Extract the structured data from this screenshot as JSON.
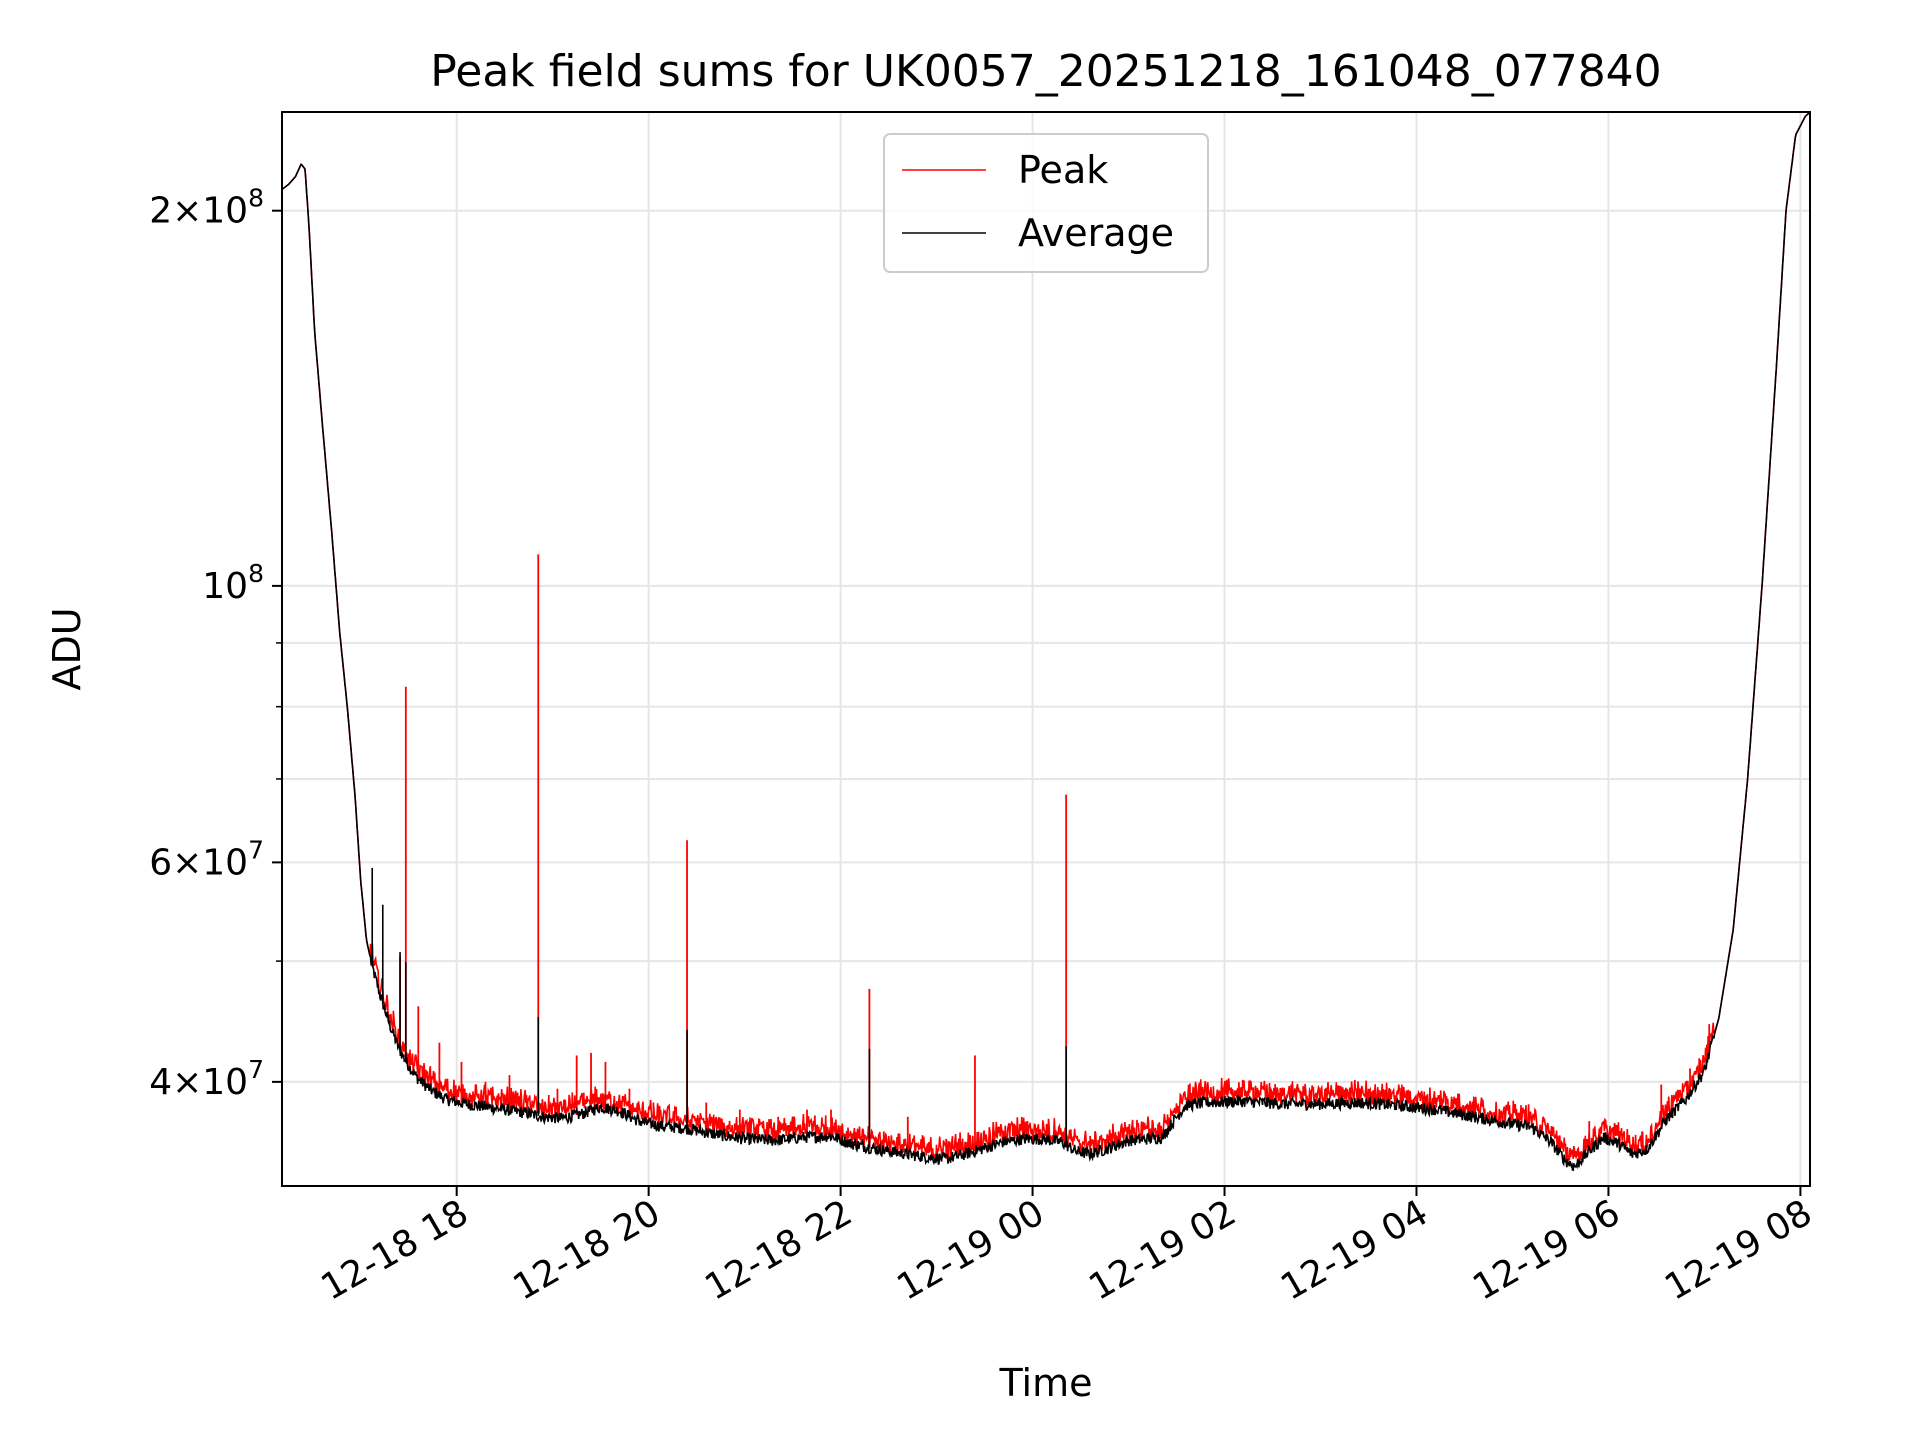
{
  "chart_data": {
    "type": "line",
    "title": "Peak field sums for UK0057_20251218_161048_077840",
    "xlabel": "Time",
    "ylabel": "ADU",
    "yscale": "log",
    "ylim": [
      33000000,
      240000000
    ],
    "xlim_hours": [
      16.18,
      32.1
    ],
    "grid": true,
    "legend_position": "upper center",
    "x_ticks": [
      {
        "hour": 18,
        "label": "12-18 18"
      },
      {
        "hour": 20,
        "label": "12-18 20"
      },
      {
        "hour": 22,
        "label": "12-18 22"
      },
      {
        "hour": 24,
        "label": "12-19 00"
      },
      {
        "hour": 26,
        "label": "12-19 02"
      },
      {
        "hour": 28,
        "label": "12-19 04"
      },
      {
        "hour": 30,
        "label": "12-19 06"
      },
      {
        "hour": 32,
        "label": "12-19 08"
      }
    ],
    "y_ticks_major": [
      {
        "value": 40000000,
        "base": "4",
        "exp": "7"
      },
      {
        "value": 60000000,
        "base": "6",
        "exp": "7"
      },
      {
        "value": 100000000,
        "base": "10",
        "exp": "8"
      },
      {
        "value": 200000000,
        "base": "2",
        "exp": "8"
      }
    ],
    "y_ticks_minor": [
      50000000,
      70000000,
      80000000,
      90000000
    ],
    "series": [
      {
        "name": "Average",
        "color": "#000000",
        "points": [
          [
            16.18,
            208000000
          ],
          [
            16.25,
            210000000
          ],
          [
            16.32,
            213000000
          ],
          [
            16.38,
            218000000
          ],
          [
            16.42,
            216000000
          ],
          [
            16.46,
            195000000
          ],
          [
            16.52,
            160000000
          ],
          [
            16.6,
            135000000
          ],
          [
            16.7,
            110000000
          ],
          [
            16.78,
            92000000
          ],
          [
            16.86,
            80000000
          ],
          [
            16.94,
            68000000
          ],
          [
            17.0,
            58000000
          ],
          [
            17.06,
            52000000
          ],
          [
            17.12,
            49500000
          ],
          [
            17.2,
            47000000
          ],
          [
            17.3,
            44500000
          ],
          [
            17.4,
            42500000
          ],
          [
            17.5,
            41200000
          ],
          [
            17.6,
            40200000
          ],
          [
            17.75,
            39300000
          ],
          [
            17.9,
            38700000
          ],
          [
            18.1,
            38400000
          ],
          [
            18.3,
            38200000
          ],
          [
            18.5,
            38000000
          ],
          [
            18.7,
            37800000
          ],
          [
            18.9,
            37500000
          ],
          [
            19.1,
            37400000
          ],
          [
            19.3,
            37700000
          ],
          [
            19.5,
            38200000
          ],
          [
            19.7,
            37900000
          ],
          [
            19.9,
            37200000
          ],
          [
            20.1,
            36900000
          ],
          [
            20.4,
            36700000
          ],
          [
            20.7,
            36300000
          ],
          [
            21.0,
            36000000
          ],
          [
            21.3,
            35900000
          ],
          [
            21.6,
            36100000
          ],
          [
            21.9,
            36200000
          ],
          [
            22.1,
            35700000
          ],
          [
            22.4,
            35300000
          ],
          [
            22.7,
            35000000
          ],
          [
            22.9,
            34800000
          ],
          [
            23.1,
            34700000
          ],
          [
            23.3,
            35000000
          ],
          [
            23.5,
            35400000
          ],
          [
            23.7,
            35800000
          ],
          [
            23.9,
            36000000
          ],
          [
            24.1,
            36000000
          ],
          [
            24.3,
            35800000
          ],
          [
            24.45,
            35200000
          ],
          [
            24.6,
            35000000
          ],
          [
            24.8,
            35400000
          ],
          [
            25.0,
            35900000
          ],
          [
            25.2,
            36000000
          ],
          [
            25.35,
            36100000
          ],
          [
            25.5,
            37500000
          ],
          [
            25.6,
            38300000
          ],
          [
            25.8,
            38500000
          ],
          [
            26.2,
            38600000
          ],
          [
            26.6,
            38400000
          ],
          [
            27.0,
            38400000
          ],
          [
            27.4,
            38500000
          ],
          [
            27.8,
            38300000
          ],
          [
            28.2,
            38000000
          ],
          [
            28.6,
            37500000
          ],
          [
            29.0,
            37000000
          ],
          [
            29.2,
            36800000
          ],
          [
            29.4,
            35800000
          ],
          [
            29.55,
            34600000
          ],
          [
            29.65,
            34200000
          ],
          [
            29.8,
            35200000
          ],
          [
            29.95,
            36100000
          ],
          [
            30.1,
            35700000
          ],
          [
            30.25,
            35000000
          ],
          [
            30.4,
            35300000
          ],
          [
            30.6,
            37300000
          ],
          [
            30.8,
            38700000
          ],
          [
            31.0,
            40800000
          ],
          [
            31.15,
            45000000
          ],
          [
            31.3,
            53000000
          ],
          [
            31.45,
            70000000
          ],
          [
            31.6,
            100000000
          ],
          [
            31.75,
            150000000
          ],
          [
            31.85,
            200000000
          ],
          [
            31.95,
            230000000
          ],
          [
            32.05,
            238000000
          ],
          [
            32.1,
            240000000
          ]
        ]
      },
      {
        "name": "Peak",
        "color": "#ff0000",
        "spikes": [
          [
            17.12,
            51000000
          ],
          [
            17.23,
            47500000
          ],
          [
            17.41,
            50500000
          ],
          [
            17.47,
            83000000
          ],
          [
            17.6,
            46000000
          ],
          [
            17.82,
            43000000
          ],
          [
            18.05,
            41500000
          ],
          [
            18.3,
            40000000
          ],
          [
            18.55,
            40500000
          ],
          [
            18.85,
            106000000
          ],
          [
            19.05,
            39500000
          ],
          [
            19.25,
            42000000
          ],
          [
            19.4,
            42200000
          ],
          [
            19.55,
            41500000
          ],
          [
            19.8,
            39500000
          ],
          [
            20.05,
            38500000
          ],
          [
            20.4,
            62500000
          ],
          [
            20.6,
            38500000
          ],
          [
            20.95,
            38000000
          ],
          [
            21.35,
            37500000
          ],
          [
            21.65,
            38000000
          ],
          [
            21.9,
            38000000
          ],
          [
            22.3,
            47500000
          ],
          [
            22.45,
            36500000
          ],
          [
            22.7,
            37500000
          ],
          [
            23.1,
            36000000
          ],
          [
            23.4,
            42000000
          ],
          [
            23.6,
            36500000
          ],
          [
            23.9,
            37000000
          ],
          [
            24.35,
            68000000
          ],
          [
            24.6,
            36200000
          ],
          [
            24.95,
            36500000
          ],
          [
            25.7,
            39500000
          ],
          [
            26.0,
            39800000
          ],
          [
            26.3,
            39600000
          ],
          [
            26.8,
            39300000
          ],
          [
            27.2,
            39700000
          ],
          [
            27.5,
            39500000
          ],
          [
            27.9,
            39200000
          ],
          [
            28.1,
            39000000
          ],
          [
            28.6,
            38200000
          ],
          [
            28.9,
            37800000
          ],
          [
            29.2,
            37300000
          ],
          [
            29.8,
            37200000
          ],
          [
            30.05,
            36800000
          ],
          [
            30.35,
            36500000
          ],
          [
            30.55,
            39800000
          ],
          [
            30.85,
            41000000
          ],
          [
            31.05,
            44500000
          ]
        ]
      }
    ],
    "legend": [
      {
        "label": "Peak",
        "color": "#ff0000"
      },
      {
        "label": "Average",
        "color": "#000000"
      }
    ]
  }
}
